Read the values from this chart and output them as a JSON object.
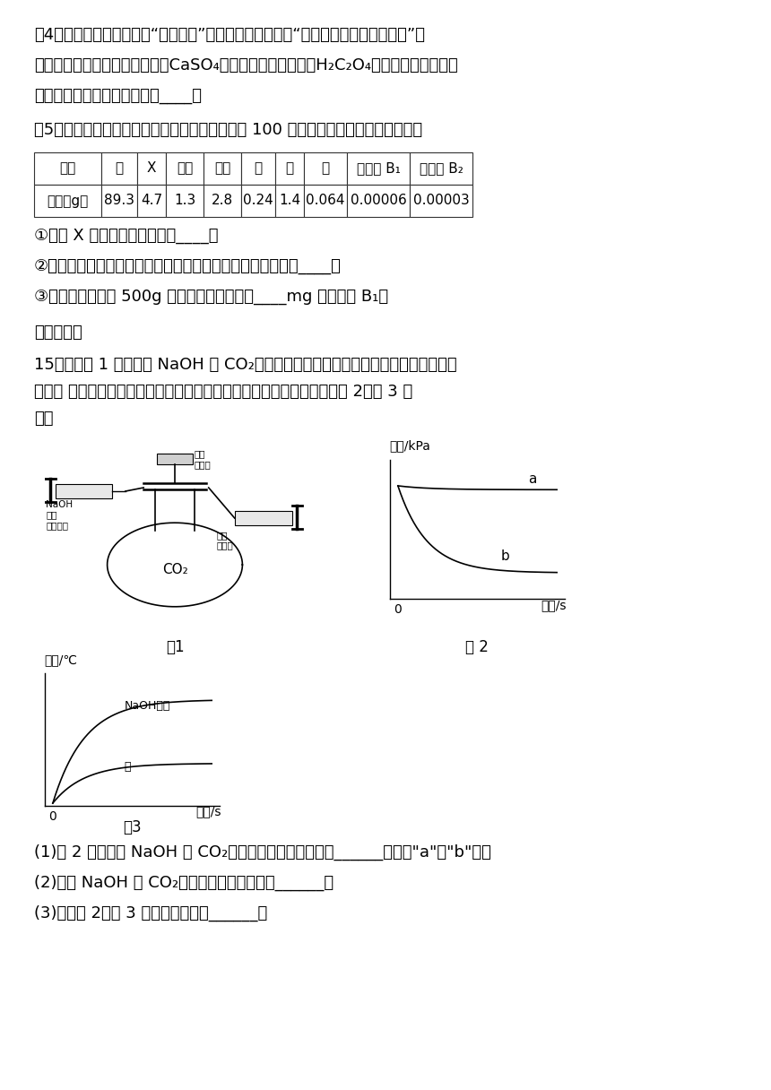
{
  "bg_color": "#ffffff",
  "para4_line1": "（4）菠菜营养丰富，素有“蔬菜之王”的美称。民间流传：“菠菜豆腐同食，易得结石”。",
  "para4_line2": "这是因为豆腐中含有一种钙盐（CaSO₄），菠菜中含有草酸（H₂C₂O₄），两者发生复分解",
  "para4_line3": "反应，该反应的化学方程式为____。",
  "para5_intro": "（5）豆腐中含有人们生活所需的各类营养素，每 100 克豆腐中含各种营养成分如表：",
  "table_headers": [
    "成分",
    "水",
    "X",
    "油脂",
    "糖类",
    "钙",
    "铁",
    "磷",
    "维生素 B₁",
    "维生素 B₂"
  ],
  "table_row_label": "质量（g）",
  "table_row_values": [
    "89.3",
    "4.7",
    "1.3",
    "2.8",
    "0.24",
    "1.4",
    "0.064",
    "0.00006",
    "0.00003"
  ],
  "q1": "①表中 X 代表六大营养素中的____；",
  "q2": "②乙醇、淀粉、葡萄糖三种物质中属于有机高分子化合物的是____；",
  "q3": "③某成年人食用了 500g 豆腐，相当于补充了____mg 的维生素 B₁。",
  "section3": "三、实验题",
  "q15_line1": "15．利用图 1 装置研究 NaOH 与 CO₂的反应。用等体积的氢氧化钠溶液、水分别进行",
  "q15_line2": "实验， 将注射器内液体全部推入，测得一段时间内压强和温度的变化如图 2、图 3 所",
  "q15_line3": "示。",
  "fig1_label": "图1",
  "fig2_label": "图 2",
  "fig3_label": "图3",
  "fig2_ylabel": "压强/kPa",
  "fig2_xlabel": "时间/s",
  "fig3_ylabel": "温度/℃",
  "fig3_xlabel": "时间/s",
  "fig3_naoh": "NaOH溶液",
  "fig3_water": "水",
  "fig2_a": "a",
  "fig2_b": "b",
  "label_pressure": "压强\n传感器",
  "label_temp": "温度\n传感器",
  "label_naoh_sol": "NaOH\n溶液\n（或水）",
  "label_co2": "CO₂",
  "ans1": "(1)图 2 中能表示 NaOH 与 CO₂发生了化学反应的曲线是______线（填\"a\"或\"b\"）。",
  "ans2": "(2)写出 NaOH 与 CO₂发生反应的化学方程式______。",
  "ans3": "(3)结合图 2、图 3 可得到的结论是______。"
}
